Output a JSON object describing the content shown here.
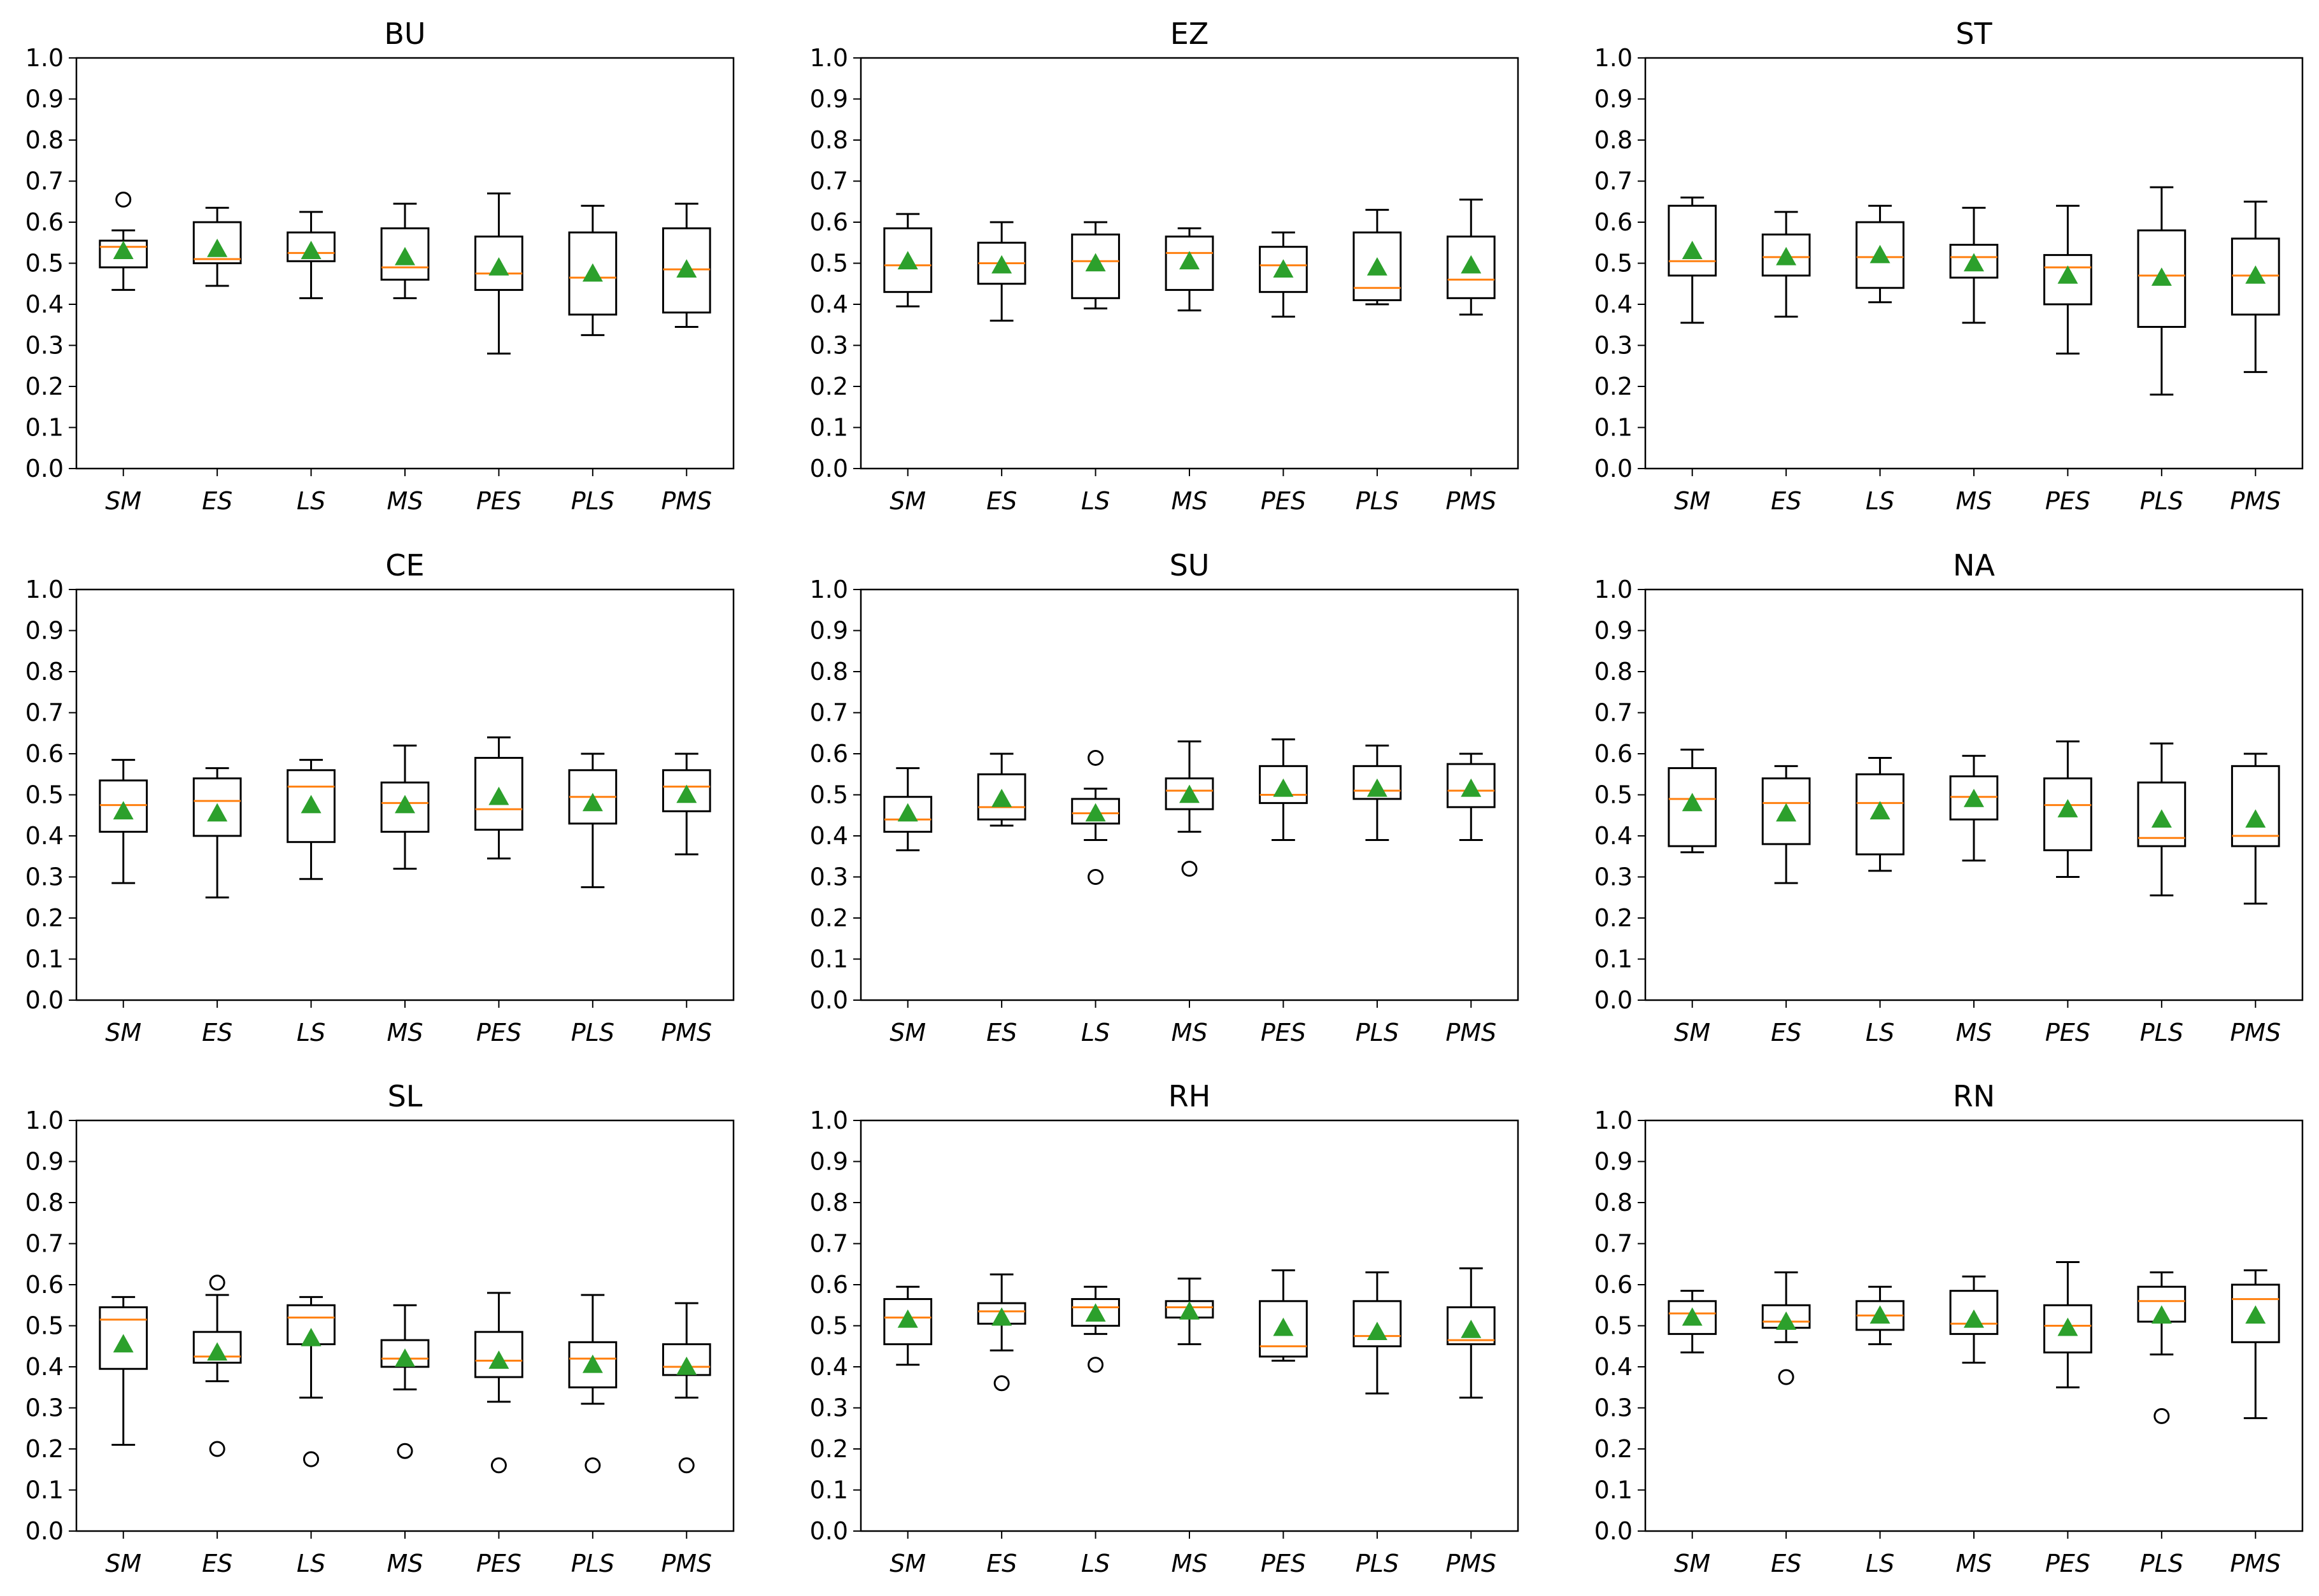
{
  "chart_data": {
    "type": "box",
    "layout": "3x3 grid",
    "ylim": [
      0,
      1
    ],
    "yticks": [
      "0.0",
      "0.1",
      "0.2",
      "0.3",
      "0.4",
      "0.5",
      "0.6",
      "0.7",
      "0.8",
      "0.9",
      "1.0"
    ],
    "categories": [
      "SM",
      "ES",
      "LS",
      "MS",
      "PES",
      "PLS",
      "PMS"
    ],
    "colors": {
      "box": "#000000",
      "median": "#ff7f0e",
      "mean": "#2ca02c",
      "flier": "#000000"
    },
    "panels": [
      {
        "title": "BU",
        "boxes": [
          {
            "whislo": 0.435,
            "q1": 0.49,
            "med": 0.54,
            "q3": 0.555,
            "whishi": 0.58,
            "mean": 0.53,
            "fliers": [
              0.655
            ]
          },
          {
            "whislo": 0.445,
            "q1": 0.5,
            "med": 0.51,
            "q3": 0.6,
            "whishi": 0.635,
            "mean": 0.535,
            "fliers": []
          },
          {
            "whislo": 0.415,
            "q1": 0.505,
            "med": 0.525,
            "q3": 0.575,
            "whishi": 0.625,
            "mean": 0.53,
            "fliers": []
          },
          {
            "whislo": 0.415,
            "q1": 0.46,
            "med": 0.49,
            "q3": 0.585,
            "whishi": 0.645,
            "mean": 0.515,
            "fliers": []
          },
          {
            "whislo": 0.28,
            "q1": 0.435,
            "med": 0.475,
            "q3": 0.565,
            "whishi": 0.67,
            "mean": 0.49,
            "fliers": []
          },
          {
            "whislo": 0.325,
            "q1": 0.375,
            "med": 0.465,
            "q3": 0.575,
            "whishi": 0.64,
            "mean": 0.475,
            "fliers": []
          },
          {
            "whislo": 0.345,
            "q1": 0.38,
            "med": 0.485,
            "q3": 0.585,
            "whishi": 0.645,
            "mean": 0.485,
            "fliers": []
          }
        ]
      },
      {
        "title": "EZ",
        "boxes": [
          {
            "whislo": 0.395,
            "q1": 0.43,
            "med": 0.495,
            "q3": 0.585,
            "whishi": 0.62,
            "mean": 0.505,
            "fliers": []
          },
          {
            "whislo": 0.36,
            "q1": 0.45,
            "med": 0.5,
            "q3": 0.55,
            "whishi": 0.6,
            "mean": 0.495,
            "fliers": []
          },
          {
            "whislo": 0.39,
            "q1": 0.415,
            "med": 0.505,
            "q3": 0.57,
            "whishi": 0.6,
            "mean": 0.5,
            "fliers": []
          },
          {
            "whislo": 0.385,
            "q1": 0.435,
            "med": 0.525,
            "q3": 0.565,
            "whishi": 0.585,
            "mean": 0.505,
            "fliers": []
          },
          {
            "whislo": 0.37,
            "q1": 0.43,
            "med": 0.495,
            "q3": 0.54,
            "whishi": 0.575,
            "mean": 0.485,
            "fliers": []
          },
          {
            "whislo": 0.4,
            "q1": 0.41,
            "med": 0.44,
            "q3": 0.575,
            "whishi": 0.63,
            "mean": 0.49,
            "fliers": []
          },
          {
            "whislo": 0.375,
            "q1": 0.415,
            "med": 0.46,
            "q3": 0.565,
            "whishi": 0.655,
            "mean": 0.495,
            "fliers": []
          }
        ]
      },
      {
        "title": "ST",
        "boxes": [
          {
            "whislo": 0.355,
            "q1": 0.47,
            "med": 0.505,
            "q3": 0.64,
            "whishi": 0.66,
            "mean": 0.53,
            "fliers": []
          },
          {
            "whislo": 0.37,
            "q1": 0.47,
            "med": 0.515,
            "q3": 0.57,
            "whishi": 0.625,
            "mean": 0.515,
            "fliers": []
          },
          {
            "whislo": 0.405,
            "q1": 0.44,
            "med": 0.515,
            "q3": 0.6,
            "whishi": 0.64,
            "mean": 0.52,
            "fliers": []
          },
          {
            "whislo": 0.355,
            "q1": 0.465,
            "med": 0.515,
            "q3": 0.545,
            "whishi": 0.635,
            "mean": 0.5,
            "fliers": []
          },
          {
            "whislo": 0.28,
            "q1": 0.4,
            "med": 0.49,
            "q3": 0.52,
            "whishi": 0.64,
            "mean": 0.47,
            "fliers": []
          },
          {
            "whislo": 0.18,
            "q1": 0.345,
            "med": 0.47,
            "q3": 0.58,
            "whishi": 0.685,
            "mean": 0.465,
            "fliers": []
          },
          {
            "whislo": 0.235,
            "q1": 0.375,
            "med": 0.47,
            "q3": 0.56,
            "whishi": 0.65,
            "mean": 0.47,
            "fliers": []
          }
        ]
      },
      {
        "title": "CE",
        "boxes": [
          {
            "whislo": 0.285,
            "q1": 0.41,
            "med": 0.475,
            "q3": 0.535,
            "whishi": 0.585,
            "mean": 0.46,
            "fliers": []
          },
          {
            "whislo": 0.25,
            "q1": 0.4,
            "med": 0.485,
            "q3": 0.54,
            "whishi": 0.565,
            "mean": 0.455,
            "fliers": []
          },
          {
            "whislo": 0.295,
            "q1": 0.385,
            "med": 0.52,
            "q3": 0.56,
            "whishi": 0.585,
            "mean": 0.475,
            "fliers": []
          },
          {
            "whislo": 0.32,
            "q1": 0.41,
            "med": 0.48,
            "q3": 0.53,
            "whishi": 0.62,
            "mean": 0.475,
            "fliers": []
          },
          {
            "whislo": 0.345,
            "q1": 0.415,
            "med": 0.465,
            "q3": 0.59,
            "whishi": 0.64,
            "mean": 0.495,
            "fliers": []
          },
          {
            "whislo": 0.275,
            "q1": 0.43,
            "med": 0.495,
            "q3": 0.56,
            "whishi": 0.6,
            "mean": 0.48,
            "fliers": []
          },
          {
            "whislo": 0.355,
            "q1": 0.46,
            "med": 0.52,
            "q3": 0.56,
            "whishi": 0.6,
            "mean": 0.5,
            "fliers": []
          }
        ]
      },
      {
        "title": "SU",
        "boxes": [
          {
            "whislo": 0.365,
            "q1": 0.41,
            "med": 0.44,
            "q3": 0.495,
            "whishi": 0.565,
            "mean": 0.455,
            "fliers": []
          },
          {
            "whislo": 0.425,
            "q1": 0.44,
            "med": 0.47,
            "q3": 0.55,
            "whishi": 0.6,
            "mean": 0.49,
            "fliers": []
          },
          {
            "whislo": 0.39,
            "q1": 0.43,
            "med": 0.455,
            "q3": 0.49,
            "whishi": 0.515,
            "mean": 0.455,
            "fliers": [
              0.59,
              0.3
            ]
          },
          {
            "whislo": 0.41,
            "q1": 0.465,
            "med": 0.51,
            "q3": 0.54,
            "whishi": 0.63,
            "mean": 0.5,
            "fliers": [
              0.32
            ]
          },
          {
            "whislo": 0.39,
            "q1": 0.48,
            "med": 0.5,
            "q3": 0.57,
            "whishi": 0.635,
            "mean": 0.515,
            "fliers": []
          },
          {
            "whislo": 0.39,
            "q1": 0.49,
            "med": 0.51,
            "q3": 0.57,
            "whishi": 0.62,
            "mean": 0.515,
            "fliers": []
          },
          {
            "whislo": 0.39,
            "q1": 0.47,
            "med": 0.51,
            "q3": 0.575,
            "whishi": 0.6,
            "mean": 0.515,
            "fliers": []
          }
        ]
      },
      {
        "title": "NA",
        "boxes": [
          {
            "whislo": 0.36,
            "q1": 0.375,
            "med": 0.49,
            "q3": 0.565,
            "whishi": 0.61,
            "mean": 0.48,
            "fliers": []
          },
          {
            "whislo": 0.285,
            "q1": 0.38,
            "med": 0.48,
            "q3": 0.54,
            "whishi": 0.57,
            "mean": 0.455,
            "fliers": []
          },
          {
            "whislo": 0.315,
            "q1": 0.355,
            "med": 0.48,
            "q3": 0.55,
            "whishi": 0.59,
            "mean": 0.46,
            "fliers": []
          },
          {
            "whislo": 0.34,
            "q1": 0.44,
            "med": 0.495,
            "q3": 0.545,
            "whishi": 0.595,
            "mean": 0.49,
            "fliers": []
          },
          {
            "whislo": 0.3,
            "q1": 0.365,
            "med": 0.475,
            "q3": 0.54,
            "whishi": 0.63,
            "mean": 0.465,
            "fliers": []
          },
          {
            "whislo": 0.255,
            "q1": 0.375,
            "med": 0.395,
            "q3": 0.53,
            "whishi": 0.625,
            "mean": 0.44,
            "fliers": []
          },
          {
            "whislo": 0.235,
            "q1": 0.375,
            "med": 0.4,
            "q3": 0.57,
            "whishi": 0.6,
            "mean": 0.44,
            "fliers": []
          }
        ]
      },
      {
        "title": "SL",
        "boxes": [
          {
            "whislo": 0.21,
            "q1": 0.395,
            "med": 0.515,
            "q3": 0.545,
            "whishi": 0.57,
            "mean": 0.455,
            "fliers": []
          },
          {
            "whislo": 0.365,
            "q1": 0.41,
            "med": 0.425,
            "q3": 0.485,
            "whishi": 0.575,
            "mean": 0.435,
            "fliers": [
              0.605,
              0.2
            ]
          },
          {
            "whislo": 0.325,
            "q1": 0.455,
            "med": 0.52,
            "q3": 0.55,
            "whishi": 0.57,
            "mean": 0.47,
            "fliers": [
              0.175
            ]
          },
          {
            "whislo": 0.345,
            "q1": 0.4,
            "med": 0.42,
            "q3": 0.465,
            "whishi": 0.55,
            "mean": 0.42,
            "fliers": [
              0.195
            ]
          },
          {
            "whislo": 0.315,
            "q1": 0.375,
            "med": 0.415,
            "q3": 0.485,
            "whishi": 0.58,
            "mean": 0.415,
            "fliers": [
              0.16
            ]
          },
          {
            "whislo": 0.31,
            "q1": 0.35,
            "med": 0.42,
            "q3": 0.46,
            "whishi": 0.575,
            "mean": 0.405,
            "fliers": [
              0.16
            ]
          },
          {
            "whislo": 0.325,
            "q1": 0.38,
            "med": 0.4,
            "q3": 0.455,
            "whishi": 0.555,
            "mean": 0.4,
            "fliers": [
              0.16
            ]
          }
        ]
      },
      {
        "title": "RH",
        "boxes": [
          {
            "whislo": 0.405,
            "q1": 0.455,
            "med": 0.52,
            "q3": 0.565,
            "whishi": 0.595,
            "mean": 0.515,
            "fliers": []
          },
          {
            "whislo": 0.44,
            "q1": 0.505,
            "med": 0.535,
            "q3": 0.555,
            "whishi": 0.625,
            "mean": 0.52,
            "fliers": [
              0.36
            ]
          },
          {
            "whislo": 0.48,
            "q1": 0.5,
            "med": 0.545,
            "q3": 0.565,
            "whishi": 0.595,
            "mean": 0.53,
            "fliers": [
              0.405
            ]
          },
          {
            "whislo": 0.455,
            "q1": 0.52,
            "med": 0.545,
            "q3": 0.56,
            "whishi": 0.615,
            "mean": 0.535,
            "fliers": []
          },
          {
            "whislo": 0.415,
            "q1": 0.425,
            "med": 0.45,
            "q3": 0.56,
            "whishi": 0.635,
            "mean": 0.495,
            "fliers": []
          },
          {
            "whislo": 0.335,
            "q1": 0.45,
            "med": 0.475,
            "q3": 0.56,
            "whishi": 0.63,
            "mean": 0.485,
            "fliers": []
          },
          {
            "whislo": 0.325,
            "q1": 0.455,
            "med": 0.465,
            "q3": 0.545,
            "whishi": 0.64,
            "mean": 0.49,
            "fliers": []
          }
        ]
      },
      {
        "title": "RN",
        "boxes": [
          {
            "whislo": 0.435,
            "q1": 0.48,
            "med": 0.53,
            "q3": 0.56,
            "whishi": 0.585,
            "mean": 0.52,
            "fliers": []
          },
          {
            "whislo": 0.46,
            "q1": 0.495,
            "med": 0.51,
            "q3": 0.55,
            "whishi": 0.63,
            "mean": 0.51,
            "fliers": [
              0.375
            ]
          },
          {
            "whislo": 0.455,
            "q1": 0.49,
            "med": 0.525,
            "q3": 0.56,
            "whishi": 0.595,
            "mean": 0.525,
            "fliers": []
          },
          {
            "whislo": 0.41,
            "q1": 0.48,
            "med": 0.505,
            "q3": 0.585,
            "whishi": 0.62,
            "mean": 0.515,
            "fliers": []
          },
          {
            "whislo": 0.35,
            "q1": 0.435,
            "med": 0.5,
            "q3": 0.55,
            "whishi": 0.655,
            "mean": 0.495,
            "fliers": []
          },
          {
            "whislo": 0.43,
            "q1": 0.51,
            "med": 0.56,
            "q3": 0.595,
            "whishi": 0.63,
            "mean": 0.525,
            "fliers": [
              0.28
            ]
          },
          {
            "whislo": 0.275,
            "q1": 0.46,
            "med": 0.565,
            "q3": 0.6,
            "whishi": 0.635,
            "mean": 0.525,
            "fliers": []
          }
        ]
      }
    ]
  }
}
